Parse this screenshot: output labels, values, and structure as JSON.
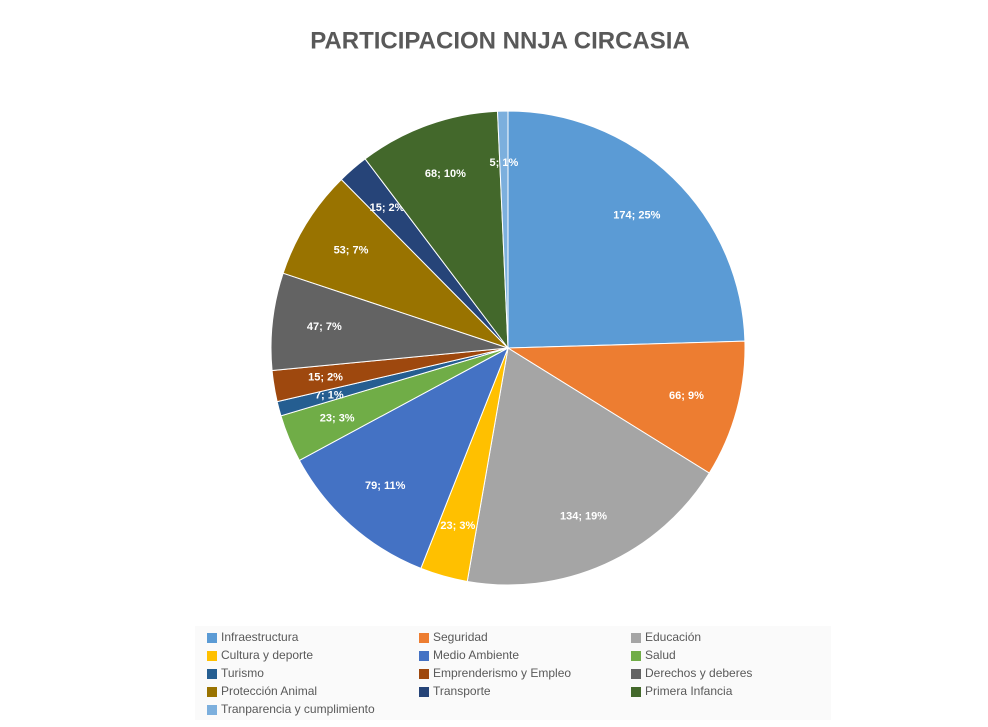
{
  "chart_data": {
    "type": "pie",
    "title": "PARTICIPACION NNJA CIRCASIA",
    "categories": [
      "Infraestructura",
      "Seguridad",
      "Educación",
      "Cultura y deporte",
      "Medio Ambiente",
      "Salud",
      "Turismo",
      "Emprenderismo y Empleo",
      "Derechos y deberes",
      "Protección Animal",
      "Transporte",
      "Primera Infancia",
      "Tranparencia y cumplimiento"
    ],
    "values": [
      174,
      66,
      134,
      23,
      79,
      23,
      7,
      15,
      47,
      53,
      15,
      68,
      5
    ],
    "value_labels": [
      "174; 25%",
      "66; 9%",
      "134; 19%",
      "23; 3%",
      "79; 11%",
      "23; 3%",
      "7; 1%",
      "15; 2%",
      "47; 7%",
      "53; 7%",
      "15; 2%",
      "68; 10%",
      "5; 1%"
    ],
    "colors": [
      "#5b9bd5",
      "#ed7d31",
      "#a5a5a5",
      "#ffc000",
      "#4472c4",
      "#70ad47",
      "#255e91",
      "#9e480e",
      "#636363",
      "#997300",
      "#264478",
      "#43682b",
      "#7cafdd"
    ],
    "legend": "bottom"
  }
}
